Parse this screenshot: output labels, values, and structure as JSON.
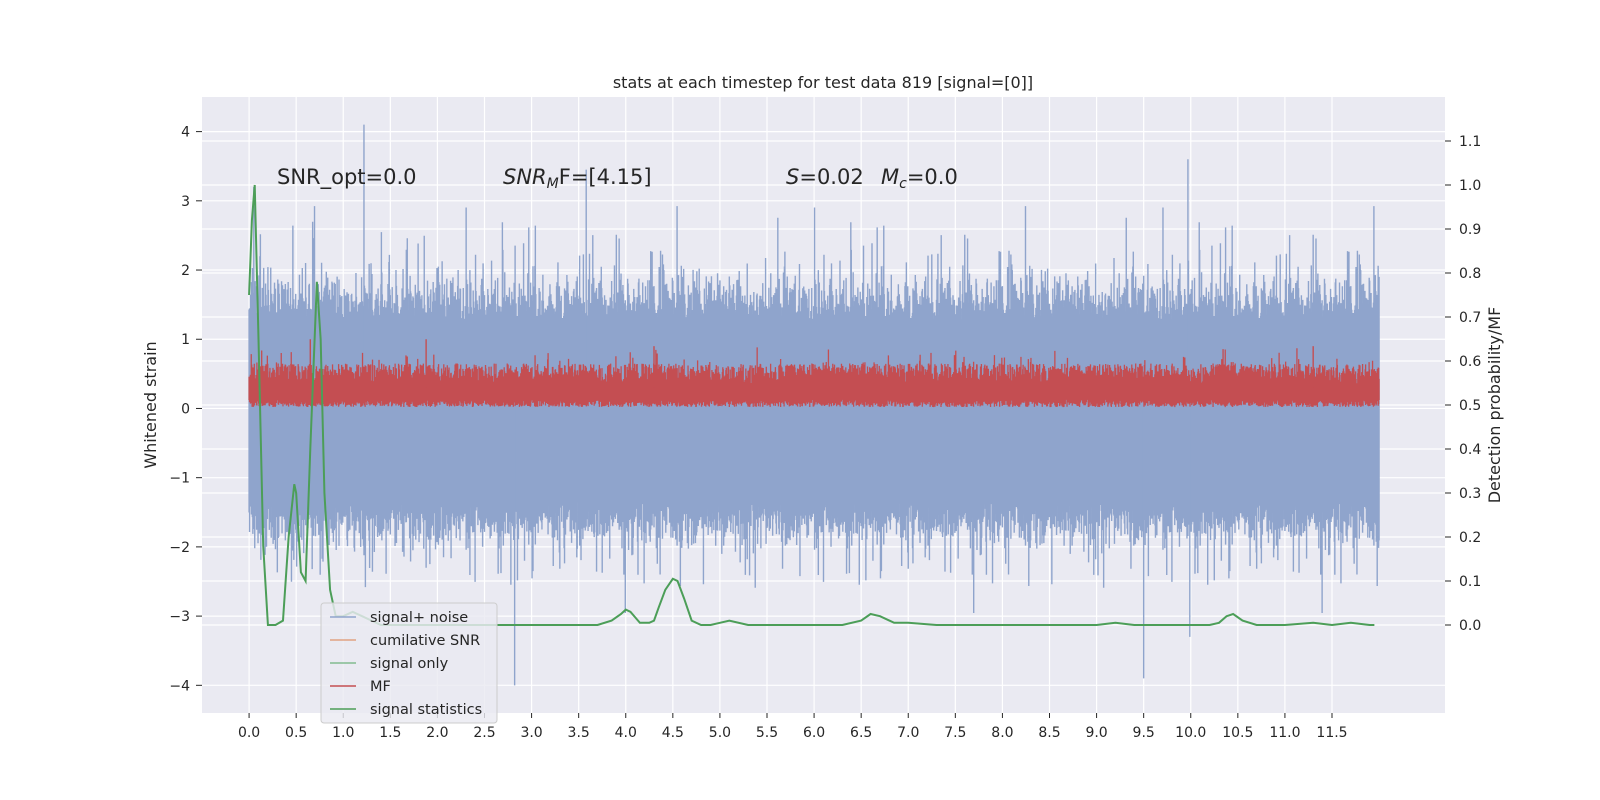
{
  "chart_data": {
    "type": "line",
    "title": "stats at each timestep for test data 819 [signal=[0]]",
    "xlabel": "",
    "ylabel": "Whitened strain",
    "y2label": "Detection probability/MF",
    "xlim": [
      -0.5,
      12.7
    ],
    "ylim": [
      -4.4,
      4.5
    ],
    "y2lim": [
      -0.2,
      1.2
    ],
    "xticks": [
      0.0,
      0.5,
      1.0,
      1.5,
      2.0,
      2.5,
      3.0,
      3.5,
      4.0,
      4.5,
      5.0,
      5.5,
      6.0,
      6.5,
      7.0,
      7.5,
      8.0,
      8.5,
      9.0,
      9.5,
      10.0,
      10.5,
      11.0,
      11.5
    ],
    "xtick_labels": [
      "0.0",
      "0.5",
      "1.0",
      "1.5",
      "2.0",
      "2.5",
      "3.0",
      "3.5",
      "4.0",
      "4.5",
      "5.0",
      "5.5",
      "6.0",
      "6.5",
      "7.0",
      "7.5",
      "8.0",
      "8.5",
      "9.0",
      "9.5",
      "10.0",
      "10.5",
      "11.0",
      "11.5"
    ],
    "yticks": [
      -4,
      -3,
      -2,
      -1,
      0,
      1,
      2,
      3,
      4
    ],
    "ytick_labels": [
      "−4",
      "−3",
      "−2",
      "−1",
      "0",
      "1",
      "2",
      "3",
      "4"
    ],
    "y2ticks": [
      0.0,
      0.1,
      0.2,
      0.3,
      0.4,
      0.5,
      0.6,
      0.7,
      0.8,
      0.9,
      1.0,
      1.1
    ],
    "y2tick_labels": [
      "0.0",
      "0.1",
      "0.2",
      "0.3",
      "0.4",
      "0.5",
      "0.6",
      "0.7",
      "0.8",
      "0.9",
      "1.0",
      "1.1"
    ],
    "grid": true,
    "legend_placement": "lower-left",
    "annotations": {
      "snr_opt": "SNR_opt=0.0",
      "snr_mf_prefix": "SNR",
      "snr_mf_sub": "M",
      "snr_mf_rest": "F=[4.15]",
      "s_label": "S",
      "s_value": "=0.02",
      "mc_label": "M",
      "mc_sub": "c",
      "mc_value": "=0.0"
    },
    "series": [
      {
        "name": "signal+ noise",
        "axis": "left",
        "color": "#8fa4cc",
        "description_range": [
          -2.5,
          3.5
        ],
        "x_range": [
          0.0,
          12.0
        ],
        "extreme_points": [
          [
            0.05,
            3.2
          ],
          [
            1.22,
            4.1
          ],
          [
            2.82,
            -4.0
          ],
          [
            3.58,
            3.45
          ],
          [
            9.5,
            -3.9
          ],
          [
            9.97,
            3.6
          ],
          [
            9.99,
            -3.3
          ]
        ]
      },
      {
        "name": "cumilative SNR",
        "axis": "right",
        "color": "#dd8452",
        "x": [],
        "y": []
      },
      {
        "name": "signal only",
        "axis": "left",
        "color": "#55a868",
        "x": [],
        "y": []
      },
      {
        "name": "MF",
        "axis": "left",
        "color": "#c44e52",
        "base": 0.0,
        "typical_peak": 0.6,
        "x_range": [
          0.0,
          12.0
        ],
        "extreme_points": [
          [
            0.65,
            1.0
          ],
          [
            1.88,
            1.0
          ],
          [
            4.3,
            0.9
          ],
          [
            11.3,
            0.9
          ]
        ]
      },
      {
        "name": "signal statistics",
        "axis": "right",
        "color": "#4c9e58",
        "x": [
          0.0,
          0.03,
          0.06,
          0.1,
          0.15,
          0.2,
          0.28,
          0.36,
          0.42,
          0.48,
          0.5,
          0.55,
          0.6,
          0.65,
          0.72,
          0.76,
          0.8,
          0.86,
          0.92,
          1.0,
          1.1,
          1.2,
          1.3,
          1.4,
          1.6,
          1.8,
          2.0,
          2.3,
          2.6,
          2.9,
          3.2,
          3.5,
          3.7,
          3.85,
          3.95,
          4.0,
          4.05,
          4.15,
          4.25,
          4.3,
          4.35,
          4.42,
          4.5,
          4.55,
          4.62,
          4.7,
          4.8,
          4.9,
          5.0,
          5.1,
          5.3,
          5.6,
          6.0,
          6.3,
          6.5,
          6.6,
          6.7,
          6.85,
          7.0,
          7.3,
          8.0,
          8.5,
          9.0,
          9.2,
          9.4,
          9.6,
          9.8,
          10.0,
          10.2,
          10.3,
          10.38,
          10.45,
          10.55,
          10.7,
          11.0,
          11.3,
          11.5,
          11.7,
          11.9,
          11.95
        ],
        "y": [
          0.75,
          0.92,
          1.0,
          0.65,
          0.18,
          0.0,
          0.0,
          0.01,
          0.2,
          0.32,
          0.3,
          0.12,
          0.1,
          0.4,
          0.78,
          0.65,
          0.3,
          0.08,
          0.02,
          0.02,
          0.03,
          0.02,
          0.01,
          0.0,
          0.0,
          0.0,
          0.0,
          0.0,
          0.0,
          0.0,
          0.0,
          0.0,
          0.0,
          0.01,
          0.025,
          0.035,
          0.03,
          0.005,
          0.005,
          0.01,
          0.04,
          0.08,
          0.105,
          0.1,
          0.06,
          0.01,
          0.0,
          0.0,
          0.005,
          0.01,
          0.0,
          0.0,
          0.0,
          0.0,
          0.01,
          0.025,
          0.02,
          0.005,
          0.005,
          0.0,
          0.0,
          0.0,
          0.0,
          0.005,
          0.0,
          0.0,
          0.0,
          0.0,
          0.0,
          0.005,
          0.02,
          0.025,
          0.01,
          0.0,
          0.0,
          0.005,
          0.0,
          0.005,
          0.0,
          0.0
        ]
      }
    ]
  }
}
